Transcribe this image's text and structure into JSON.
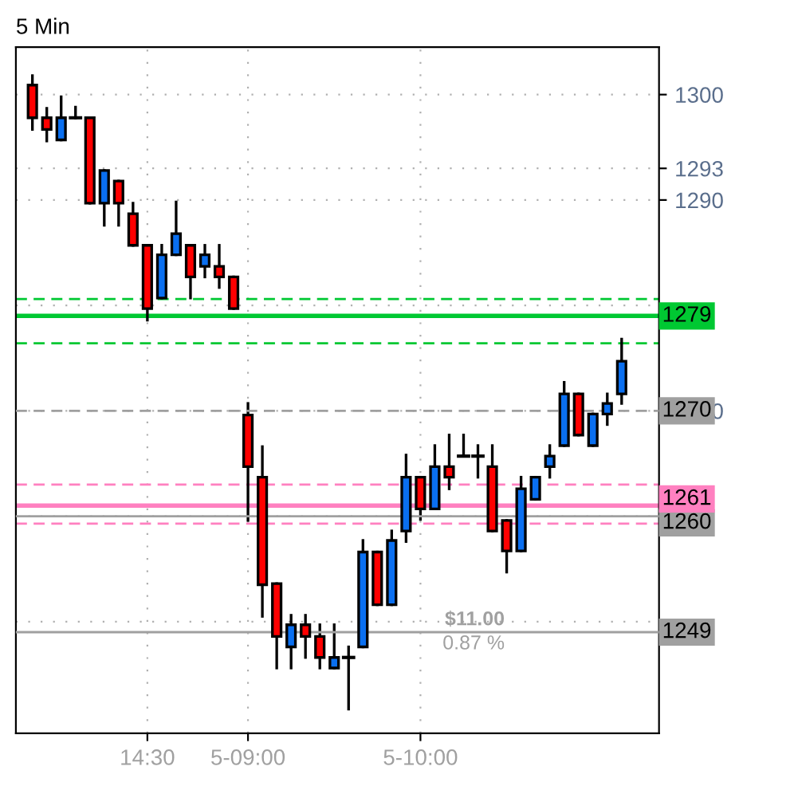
{
  "chart_data": {
    "type": "candlestick",
    "title": "5 Min",
    "categories": [
      null,
      null,
      null,
      null,
      null,
      null,
      null,
      null,
      "14:30",
      null,
      null,
      null,
      null,
      null,
      null,
      "5-09:00",
      null,
      null,
      null,
      null,
      null,
      null,
      null,
      null,
      null,
      null,
      null,
      "5-10:00",
      null,
      null,
      null,
      null,
      null,
      null,
      null,
      null,
      null,
      null,
      null,
      null,
      null,
      null
    ],
    "ohlc": [
      [
        1300.9,
        1301.8,
        1296.7,
        1297.8
      ],
      [
        1297.8,
        1298.7,
        1295.6,
        1296.7
      ],
      [
        1295.7,
        1299.8,
        1295.7,
        1297.8
      ],
      [
        1297.8,
        1298.8,
        1297.8,
        1297.8
      ],
      [
        1297.8,
        1297.8,
        1289.7,
        1289.7
      ],
      [
        1289.7,
        1292.8,
        1287.6,
        1292.8
      ],
      [
        1291.8,
        1291.8,
        1287.6,
        1289.7
      ],
      [
        1288.7,
        1289.7,
        1285.7,
        1285.7
      ],
      [
        1285.7,
        1285.7,
        1278.6,
        1279.7
      ],
      [
        1280.7,
        1285.7,
        1280.7,
        1284.8
      ],
      [
        1284.8,
        1289.8,
        1284.8,
        1286.8
      ],
      [
        1285.7,
        1285.7,
        1280.7,
        1282.7
      ],
      [
        1283.7,
        1285.7,
        1282.7,
        1284.8
      ],
      [
        1283.7,
        1285.7,
        1281.7,
        1282.7
      ],
      [
        1282.7,
        1282.7,
        1279.7,
        1279.7
      ],
      [
        1269.6,
        1270.7,
        1259.6,
        1264.7
      ],
      [
        1263.7,
        1266.6,
        1250.5,
        1253.5
      ],
      [
        1253.6,
        1253.6,
        1245.6,
        1248.6
      ],
      [
        1247.6,
        1250.6,
        1245.6,
        1249.7
      ],
      [
        1249.7,
        1250.6,
        1246.6,
        1248.6
      ],
      [
        1248.6,
        1249.7,
        1245.6,
        1246.6
      ],
      [
        1245.6,
        1249.7,
        1245.6,
        1246.6
      ],
      [
        1246.6,
        1247.6,
        1241.7,
        1246.6
      ],
      [
        1247.6,
        1257.7,
        1247.6,
        1256.6
      ],
      [
        1256.6,
        1256.6,
        1251.6,
        1251.6
      ],
      [
        1251.6,
        1258.6,
        1251.6,
        1257.7
      ],
      [
        1258.6,
        1265.8,
        1257.6,
        1263.7
      ],
      [
        1263.7,
        1263.7,
        1259.7,
        1260.7
      ],
      [
        1260.7,
        1266.7,
        1260.7,
        1264.7
      ],
      [
        1264.7,
        1267.7,
        1262.6,
        1263.7
      ],
      [
        1265.7,
        1267.7,
        1265.7,
        1265.7
      ],
      [
        1265.7,
        1266.7,
        1263.7,
        1265.7
      ],
      [
        1264.7,
        1266.7,
        1258.6,
        1258.6
      ],
      [
        1259.6,
        1259.6,
        1254.7,
        1256.7
      ],
      [
        1256.7,
        1263.7,
        1256.7,
        1262.6
      ],
      [
        1261.6,
        1263.7,
        1261.6,
        1263.7
      ],
      [
        1264.7,
        1266.7,
        1263.7,
        1265.7
      ],
      [
        1266.7,
        1272.7,
        1266.7,
        1271.6
      ],
      [
        1271.6,
        1271.6,
        1267.7,
        1267.7
      ],
      [
        1266.7,
        1269.7,
        1266.7,
        1269.7
      ],
      [
        1269.7,
        1271.6,
        1268.7,
        1270.7
      ],
      [
        1271.6,
        1276.8,
        1270.7,
        1274.7
      ]
    ],
    "colors": [
      "#ff0000",
      "#ff0000",
      "#0a6ff0",
      "#000000",
      "#ff0000",
      "#0a6ff0",
      "#ff0000",
      "#ff0000",
      "#ff0000",
      "#0a6ff0",
      "#0a6ff0",
      "#ff0000",
      "#0a6ff0",
      "#ff0000",
      "#ff0000",
      "#ff0000",
      "#ff0000",
      "#ff0000",
      "#0a6ff0",
      "#ff0000",
      "#ff0000",
      "#0a6ff0",
      "#000000",
      "#0a6ff0",
      "#ff0000",
      "#0a6ff0",
      "#0a6ff0",
      "#ff0000",
      "#0a6ff0",
      "#ff0000",
      "#000000",
      "#000000",
      "#ff0000",
      "#ff0000",
      "#0a6ff0",
      "#0a6ff0",
      "#0a6ff0",
      "#0a6ff0",
      "#ff0000",
      "#0a6ff0",
      "#0a6ff0",
      "#0a6ff0"
    ],
    "ylim": [
      1239.4,
      1304.5
    ],
    "yticks": [
      {
        "value": 1250,
        "label": null
      },
      {
        "value": 1260,
        "label": null
      },
      1270,
      {
        "value": 1280,
        "label": null
      },
      1290,
      1293,
      1300
    ],
    "grid": true,
    "ref_lines": [
      {
        "axis": "y",
        "value": 1280.6,
        "color": "#00c832",
        "line_style": "dashed"
      },
      {
        "axis": "y",
        "value": 1279,
        "label": "1279",
        "color": "#00c832",
        "line_style": "solid"
      },
      {
        "axis": "y",
        "value": 1276.4,
        "color": "#00c832",
        "line_style": "dashed"
      },
      {
        "axis": "y",
        "value": 1270,
        "label": "1270",
        "color": "#a0a0a0",
        "line_style": "dashed"
      },
      {
        "axis": "y",
        "value": 1263,
        "color": "#ff80c0",
        "line_style": "dashed"
      },
      {
        "axis": "y",
        "value": 1261,
        "label": "1261",
        "color": "#ff80c0",
        "line_style": "solid"
      },
      {
        "axis": "y",
        "value": 1259.3,
        "color": "#ff80c0",
        "line_style": "dashed"
      },
      {
        "axis": "y",
        "value": 1260,
        "label": "1260",
        "color": "#a0a0a0",
        "line_style": "solid"
      },
      {
        "axis": "y",
        "value": 1249,
        "label": "1249",
        "color": "#a0a0a0",
        "line_style": "solid"
      }
    ],
    "annotations": [
      "$11.00",
      "0.87 %"
    ]
  }
}
